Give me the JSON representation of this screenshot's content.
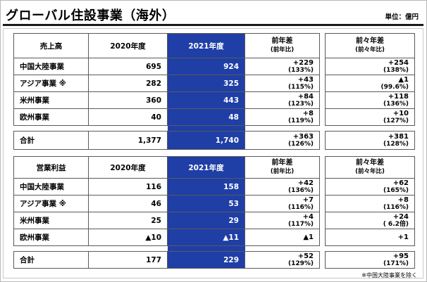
{
  "title": "グローバル住設事業（海外）",
  "unit": "単位：億円",
  "columns": {
    "y2020": "2020年度",
    "y2021": "2021年度",
    "diff_prev": "前年差",
    "diff_prev_sub": "(前年比)",
    "diff_prev2": "前々年差",
    "diff_prev2_sub": "(前々年比)"
  },
  "sales": {
    "label": "売上高",
    "rows": [
      {
        "name": "中国大陸事業",
        "v2020": "695",
        "v2021": "924",
        "d1": "+229",
        "d1p": "(133%)",
        "d2": "+254",
        "d2p": "(138%)"
      },
      {
        "name": "アジア事業 ※",
        "v2020": "282",
        "v2021": "325",
        "d1": "+43",
        "d1p": "(115%)",
        "d2": "▲1",
        "d2p": "(99.6%)"
      },
      {
        "name": "米州事業",
        "v2020": "360",
        "v2021": "443",
        "d1": "+84",
        "d1p": "(123%)",
        "d2": "+118",
        "d2p": "(136%)"
      },
      {
        "name": "欧州事業",
        "v2020": "40",
        "v2021": "48",
        "d1": "+8",
        "d1p": "(119%)",
        "d2": "+10",
        "d2p": "(127%)"
      }
    ],
    "total": {
      "name": "合計",
      "v2020": "1,377",
      "v2021": "1,740",
      "d1": "+363",
      "d1p": "(126%)",
      "d2": "+381",
      "d2p": "(128%)"
    }
  },
  "profit": {
    "label": "営業利益",
    "rows": [
      {
        "name": "中国大陸事業",
        "v2020": "116",
        "v2021": "158",
        "d1": "+42",
        "d1p": "(136%)",
        "d2": "+62",
        "d2p": "(165%)"
      },
      {
        "name": "アジア事業 ※",
        "v2020": "46",
        "v2021": "53",
        "d1": "+7",
        "d1p": "(116%)",
        "d2": "+8",
        "d2p": "(116%)"
      },
      {
        "name": "米州事業",
        "v2020": "25",
        "v2021": "29",
        "d1": "+4",
        "d1p": "(117%)",
        "d2": "+24",
        "d2p": "( 6.2倍)"
      },
      {
        "name": "欧州事業",
        "v2020": "▲10",
        "v2021": "▲11",
        "d1": "▲1",
        "d1p": "",
        "d2": "+1",
        "d2p": ""
      }
    ],
    "total": {
      "name": "合計",
      "v2020": "177",
      "v2021": "229",
      "d1": "+52",
      "d1p": "(129%)",
      "d2": "+95",
      "d2p": "(171%)"
    }
  },
  "footnote": "※中国大陸事業を除く"
}
